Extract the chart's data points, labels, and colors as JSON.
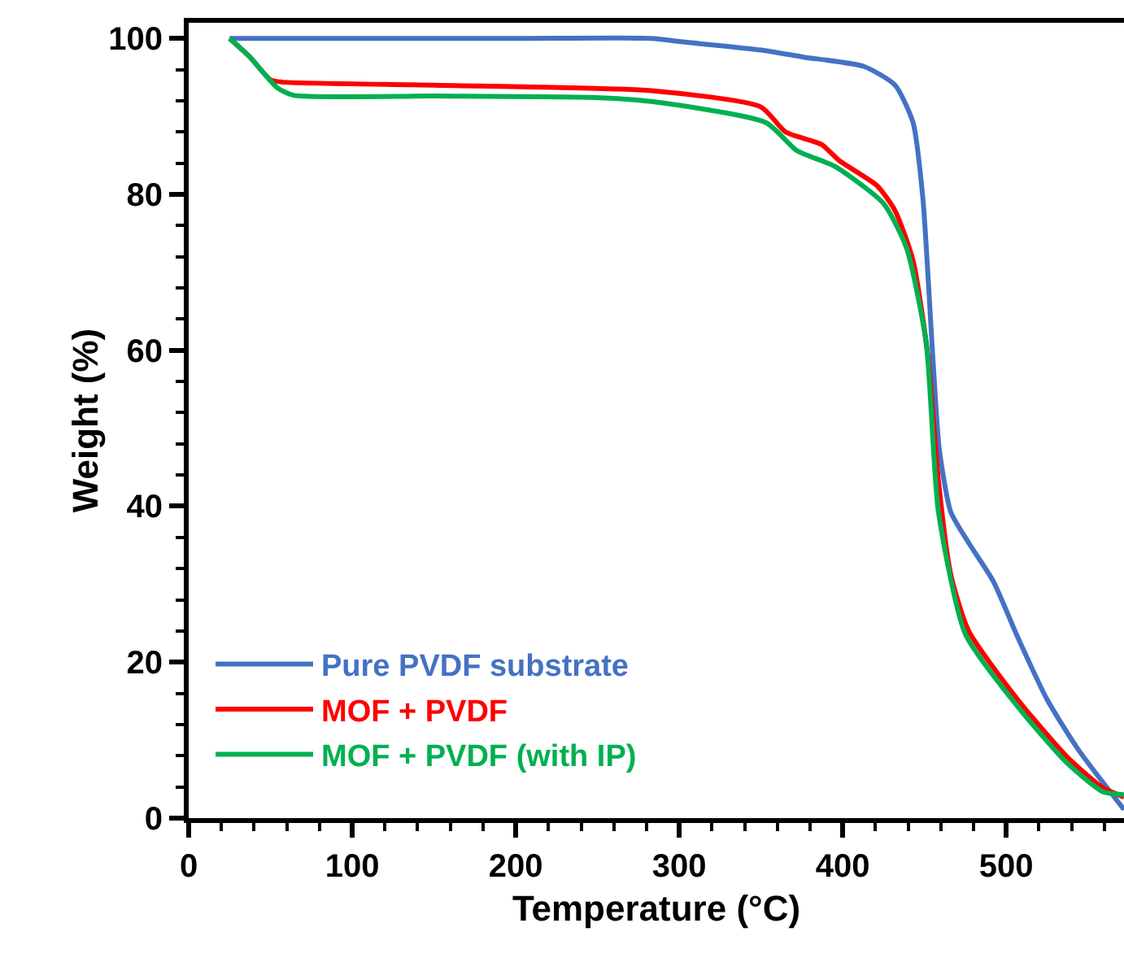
{
  "chart_data": {
    "type": "line",
    "xlabel": "Temperature (°C)",
    "ylabel": "Weight (%)",
    "xlim": [
      0,
      572
    ],
    "ylim": [
      0,
      102
    ],
    "xticks": [
      0,
      100,
      200,
      300,
      400,
      500
    ],
    "yticks": [
      0,
      20,
      40,
      60,
      80,
      100
    ],
    "grid": false,
    "legend": "bottom left",
    "marker": "none",
    "line_style": "solid",
    "series": [
      {
        "name": "Pure PVDF substrate",
        "color": "#4472c4",
        "x": [
          25,
          100,
          200,
          283,
          300,
          350,
          376,
          413,
          432,
          443,
          449,
          455,
          459,
          466,
          477,
          492,
          507,
          525,
          544,
          572
        ],
        "values": [
          100,
          100,
          100,
          100,
          99.6,
          98.5,
          97.6,
          96.4,
          94,
          89.2,
          79.5,
          59.4,
          47.4,
          39.3,
          35.3,
          30.4,
          23.2,
          15.2,
          8.8,
          1.1
        ]
      },
      {
        "name": "MOF + PVDF",
        "color": "#ff0000",
        "x": [
          25,
          37,
          50,
          57,
          150,
          283,
          350,
          365,
          387,
          398,
          421,
          432,
          443,
          452,
          458.5,
          466,
          477,
          507,
          537,
          559,
          572
        ],
        "values": [
          100,
          97.7,
          94.7,
          94.4,
          94,
          93.3,
          91.2,
          88,
          86.4,
          84.3,
          81.1,
          77.9,
          71.5,
          59.4,
          43.3,
          31.3,
          24,
          15.2,
          7.9,
          3.9,
          2.7
        ]
      },
      {
        "name": "MOF + PVDF (with IP)",
        "color": "#00b050",
        "x": [
          25,
          37,
          54,
          64,
          150,
          249,
          283,
          353,
          372,
          395,
          425,
          439,
          451,
          458.5,
          475,
          507,
          537,
          559,
          572
        ],
        "values": [
          100,
          97.7,
          93.7,
          92.7,
          92.6,
          92.4,
          91.9,
          89.2,
          85.6,
          83.6,
          78.8,
          73.1,
          61,
          39.3,
          23.6,
          14.3,
          7.1,
          3.4,
          3.0
        ]
      }
    ]
  }
}
